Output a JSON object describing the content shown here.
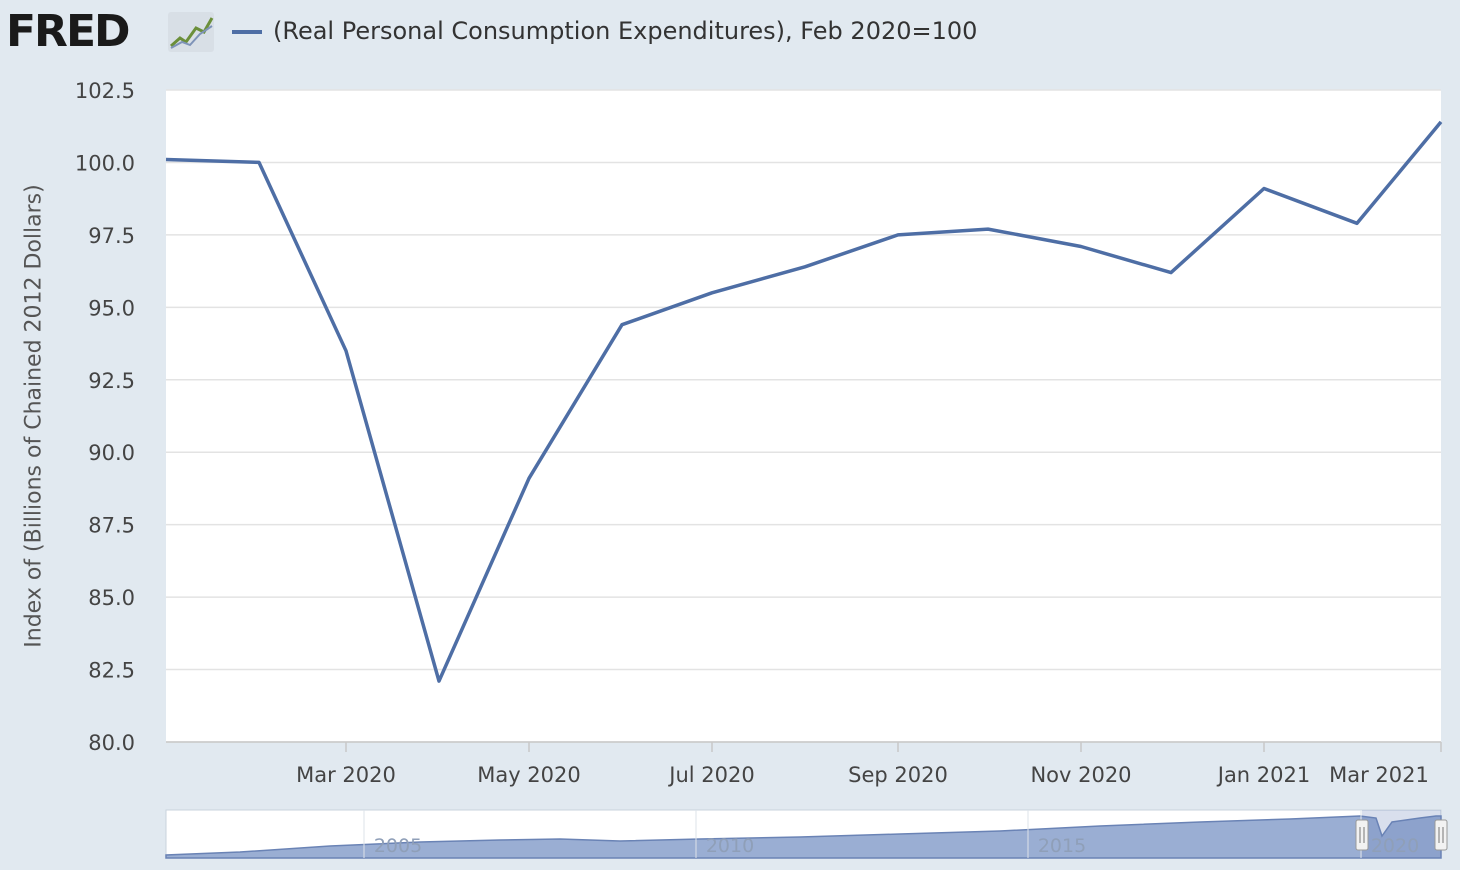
{
  "header": {
    "logo": "FRED",
    "logo_icon": "line-chart-icon",
    "legend_label": "(Real Personal Consumption Expenditures), Feb 2020=100"
  },
  "colors": {
    "background": "#e1e9f0",
    "series": "#4e6ea5",
    "navigator_fill": "#9aaed3"
  },
  "chart_data": {
    "type": "line",
    "title": "",
    "ylabel": "Index of (Billions of Chained 2012 Dollars)",
    "ylim": [
      80,
      102.5
    ],
    "yticks": [
      "80.0",
      "82.5",
      "85.0",
      "87.5",
      "90.0",
      "92.5",
      "95.0",
      "97.5",
      "100.0",
      "102.5"
    ],
    "xlim": [
      "2020-01-01",
      "2021-03-01"
    ],
    "xticks": [
      {
        "date": "2020-03-01",
        "label": "Mar 2020"
      },
      {
        "date": "2020-05-01",
        "label": "May 2020"
      },
      {
        "date": "2020-07-01",
        "label": "Jul 2020"
      },
      {
        "date": "2020-09-01",
        "label": "Sep 2020"
      },
      {
        "date": "2020-11-01",
        "label": "Nov 2020"
      },
      {
        "date": "2021-01-01",
        "label": "Jan 2021"
      },
      {
        "date": "2021-03-01",
        "label": "Mar 2021"
      }
    ],
    "grid": true,
    "legend_position": "top-left",
    "series": [
      {
        "name": "(Real Personal Consumption Expenditures), Feb 2020=100",
        "x": [
          "2020-01-01",
          "2020-02-01",
          "2020-03-01",
          "2020-04-01",
          "2020-05-01",
          "2020-06-01",
          "2020-07-01",
          "2020-08-01",
          "2020-09-01",
          "2020-10-01",
          "2020-11-01",
          "2020-12-01",
          "2021-01-01",
          "2021-02-01",
          "2021-03-01"
        ],
        "values": [
          100.1,
          100.0,
          93.5,
          82.1,
          89.1,
          94.4,
          95.5,
          96.4,
          97.5,
          97.7,
          97.1,
          96.2,
          99.1,
          97.9,
          101.4
        ]
      }
    ],
    "navigator": {
      "labels": [
        "2005",
        "2010",
        "2015",
        "2020"
      ]
    }
  }
}
